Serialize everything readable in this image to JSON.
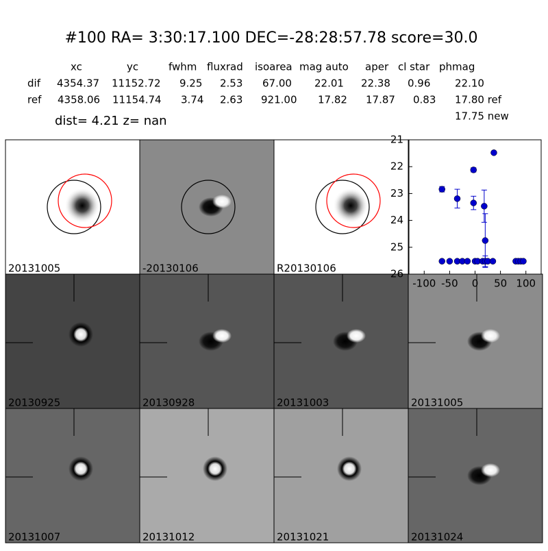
{
  "header": {
    "title": "#100   RA= 3:30:17.100 DEC=-28:28:57.78      score=30.0"
  },
  "table": {
    "columns": [
      "xc",
      "yc",
      "fwhm",
      "fluxrad",
      "isoarea",
      "mag auto",
      "aper",
      "cl star",
      "phmag"
    ],
    "rows": [
      [
        "dif",
        "4354.37",
        "11152.72",
        "9.25",
        "2.53",
        "67.00",
        "22.01",
        "22.38",
        "0.96",
        "22.10"
      ],
      [
        "ref",
        "4358.06",
        "11154.74",
        "3.74",
        "2.63",
        "921.00",
        "17.82",
        "17.87",
        "0.83",
        "17.80 ref"
      ]
    ],
    "extra": "17.75 new"
  },
  "dist_line": "dist=  4.21      z=   nan",
  "panels": [
    {
      "label": "20131005",
      "bg": "#ffffff",
      "blob": "dark",
      "circles": true
    },
    {
      "label": "-20130106",
      "bg": "#8a8a8a",
      "blob": "dipole",
      "circles": true
    },
    {
      "label": "R20130106",
      "bg": "#ffffff",
      "blob": "dark",
      "circles": true
    },
    {
      "label": "20130925",
      "bg": "#444444",
      "blob": "bright"
    },
    {
      "label": "20130928",
      "bg": "#555555",
      "blob": "dipole"
    },
    {
      "label": "20131003",
      "bg": "#555555",
      "blob": "dipole"
    },
    {
      "label": "20131005",
      "bg": "#8c8c8c",
      "blob": "dipole",
      "label_color": "#ff0000"
    },
    {
      "label": "20131007",
      "bg": "#666666",
      "blob": "bright"
    },
    {
      "label": "20131012",
      "bg": "#aaaaaa",
      "blob": "bright"
    },
    {
      "label": "20131021",
      "bg": "#a0a0a0",
      "blob": "bright"
    },
    {
      "label": "20131024",
      "bg": "#666666",
      "blob": "dipole"
    }
  ],
  "chart_data": {
    "type": "scatter",
    "xlim": [
      -130,
      130
    ],
    "ylim": [
      26,
      21
    ],
    "xticks": [
      -100,
      -50,
      0,
      50,
      100
    ],
    "yticks": [
      21,
      22,
      23,
      24,
      25,
      26
    ],
    "series": [
      {
        "color": "#0000cc",
        "x": [
          -65,
          -35,
          -3,
          -3,
          18,
          20,
          37,
          -65,
          -50,
          -35,
          -25,
          -15,
          0,
          5,
          15,
          20,
          25,
          35,
          80,
          85,
          90,
          95
        ],
        "values": [
          22.84,
          23.19,
          22.12,
          23.35,
          23.47,
          24.75,
          21.48,
          25.52,
          25.52,
          25.52,
          25.52,
          25.52,
          25.52,
          25.52,
          25.52,
          25.52,
          25.52,
          25.52,
          25.52,
          25.52,
          25.52,
          25.52
        ],
        "errors": [
          0.1,
          0.35,
          0.08,
          0.25,
          0.6,
          1.0,
          0,
          0,
          0,
          0,
          0,
          0,
          0,
          0,
          0,
          0.2,
          0,
          0,
          0,
          0,
          0,
          0
        ]
      }
    ]
  }
}
